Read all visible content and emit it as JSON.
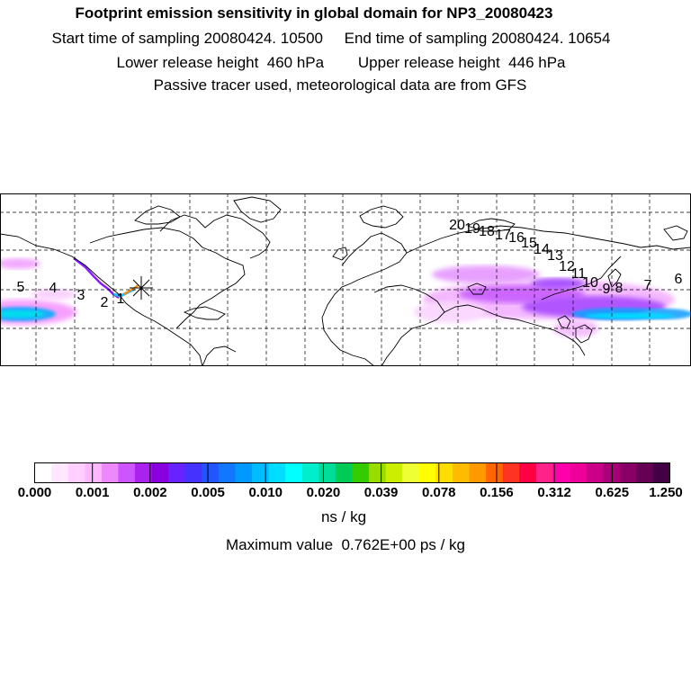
{
  "header": {
    "title": "Footprint emission sensitivity in global domain for NP3_20080423",
    "line2": "Start time of sampling 20080424. 10500     End time of sampling 20080424. 10654",
    "line3": "Lower release height  460 hPa        Upper release height  446 hPa",
    "line4": "Passive tracer used, meteorological data are from GFS"
  },
  "map": {
    "trajectory_labels": [
      "1",
      "2",
      "3",
      "4",
      "5",
      "6",
      "7",
      "8",
      "9",
      "10",
      "11",
      "12",
      "13",
      "14",
      "15",
      "16",
      "17",
      "18",
      "19",
      "20"
    ],
    "release_marker": "asterisk-icon"
  },
  "colorbar": {
    "colors": [
      "#ffffff",
      "#ffe8ff",
      "#ffd0ff",
      "#ffb8ff",
      "#ee88ff",
      "#cc55ff",
      "#aa22ee",
      "#8800dd",
      "#6622ff",
      "#4433ff",
      "#2255ff",
      "#1177ff",
      "#0099ff",
      "#00bbff",
      "#00ddff",
      "#00ffff",
      "#00eecc",
      "#00dd99",
      "#00cc55",
      "#33cc00",
      "#99dd00",
      "#ccee00",
      "#eeff33",
      "#ffff00",
      "#ffdd00",
      "#ffbb00",
      "#ff9900",
      "#ff6600",
      "#ff3322",
      "#ff0044",
      "#ff2288",
      "#ff00aa",
      "#ee0099",
      "#cc0088",
      "#aa0077",
      "#880066",
      "#660055",
      "#440044"
    ],
    "tick_labels": [
      "0.000",
      "0.001",
      "0.002",
      "0.005",
      "0.010",
      "0.020",
      "0.039",
      "0.078",
      "0.156",
      "0.312",
      "0.625",
      "1.250"
    ]
  },
  "unit": "ns / kg",
  "maximum_value": "Maximum value  0.762E+00 ps / kg"
}
